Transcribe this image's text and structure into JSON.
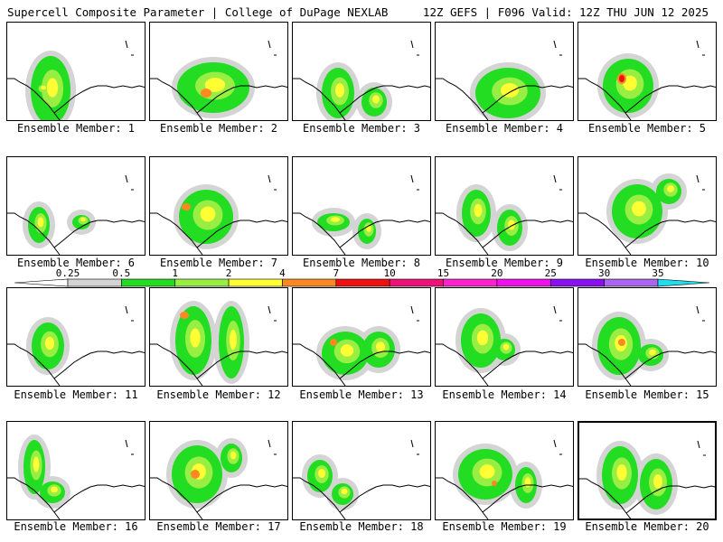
{
  "header": {
    "left_title": "Supercell Composite Parameter | College of DuPage NEXLAB",
    "right_title": "12Z GEFS | F096 Valid: 12Z THU JUN 12 2025"
  },
  "member_label_prefix": "Ensemble Member:",
  "members": [
    {
      "id": 1,
      "label": "Ensemble Member: 1"
    },
    {
      "id": 2,
      "label": "Ensemble Member: 2"
    },
    {
      "id": 3,
      "label": "Ensemble Member: 3"
    },
    {
      "id": 4,
      "label": "Ensemble Member: 4"
    },
    {
      "id": 5,
      "label": "Ensemble Member: 5"
    },
    {
      "id": 6,
      "label": "Ensemble Member: 6"
    },
    {
      "id": 7,
      "label": "Ensemble Member: 7"
    },
    {
      "id": 8,
      "label": "Ensemble Member: 8"
    },
    {
      "id": 9,
      "label": "Ensemble Member: 9"
    },
    {
      "id": 10,
      "label": "Ensemble Member: 10"
    },
    {
      "id": 11,
      "label": "Ensemble Member: 11"
    },
    {
      "id": 12,
      "label": "Ensemble Member: 12"
    },
    {
      "id": 13,
      "label": "Ensemble Member: 13"
    },
    {
      "id": 14,
      "label": "Ensemble Member: 14"
    },
    {
      "id": 15,
      "label": "Ensemble Member: 15"
    },
    {
      "id": 16,
      "label": "Ensemble Member: 16"
    },
    {
      "id": 17,
      "label": "Ensemble Member: 17"
    },
    {
      "id": 18,
      "label": "Ensemble Member: 18"
    },
    {
      "id": 19,
      "label": "Ensemble Member: 19"
    },
    {
      "id": 20,
      "label": "Ensemble Member: 20",
      "selected": true
    }
  ],
  "colorbar": {
    "labels": [
      "0.25",
      "0.5",
      "1",
      "2",
      "4",
      "7",
      "10",
      "15",
      "20",
      "25",
      "30",
      "35"
    ],
    "colors": [
      "#d4d4d4",
      "#22dd22",
      "#99ee44",
      "#ffff33",
      "#ff8822",
      "#ee1111",
      "#ee1177",
      "#ff22cc",
      "#ee11ee",
      "#8811ee",
      "#aa66ee",
      "#22ddee"
    ]
  }
}
